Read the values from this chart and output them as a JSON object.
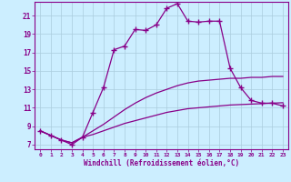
{
  "xlabel": "Windchill (Refroidissement éolien,°C)",
  "background_color": "#cceeff",
  "grid_color": "#aaccdd",
  "line_color": "#880088",
  "xlim": [
    -0.5,
    23.5
  ],
  "ylim": [
    6.5,
    22.5
  ],
  "xticks": [
    0,
    1,
    2,
    3,
    4,
    5,
    6,
    7,
    8,
    9,
    10,
    11,
    12,
    13,
    14,
    15,
    16,
    17,
    18,
    19,
    20,
    21,
    22,
    23
  ],
  "yticks": [
    7,
    9,
    11,
    13,
    15,
    17,
    19,
    21
  ],
  "line1_x": [
    0,
    1,
    2,
    3,
    4,
    5,
    6,
    7,
    8,
    9,
    10,
    11,
    12,
    13,
    14,
    15,
    16,
    17,
    18,
    19,
    20,
    21,
    22,
    23
  ],
  "line1_y": [
    8.5,
    8.0,
    7.5,
    7.0,
    7.8,
    10.5,
    13.2,
    17.3,
    17.7,
    19.5,
    19.4,
    20.0,
    21.8,
    22.3,
    20.4,
    20.3,
    20.4,
    20.4,
    15.3,
    13.2,
    11.8,
    11.5,
    11.5,
    11.2
  ],
  "line2_x": [
    0,
    2,
    3,
    4,
    5,
    6,
    7,
    8,
    9,
    10,
    11,
    12,
    13,
    14,
    15,
    16,
    17,
    18,
    19,
    20,
    21,
    22,
    23
  ],
  "line2_y": [
    8.5,
    7.5,
    7.2,
    7.8,
    8.5,
    9.2,
    10.0,
    10.8,
    11.5,
    12.1,
    12.6,
    13.0,
    13.4,
    13.7,
    13.9,
    14.0,
    14.1,
    14.2,
    14.2,
    14.3,
    14.3,
    14.4,
    14.4
  ],
  "line3_x": [
    0,
    2,
    3,
    4,
    5,
    6,
    7,
    8,
    9,
    10,
    11,
    12,
    13,
    14,
    15,
    16,
    17,
    18,
    19,
    20,
    21,
    22,
    23
  ],
  "line3_y": [
    8.5,
    7.5,
    7.2,
    7.8,
    8.1,
    8.5,
    8.9,
    9.3,
    9.6,
    9.9,
    10.2,
    10.5,
    10.7,
    10.9,
    11.0,
    11.1,
    11.2,
    11.3,
    11.35,
    11.4,
    11.45,
    11.5,
    11.55
  ]
}
